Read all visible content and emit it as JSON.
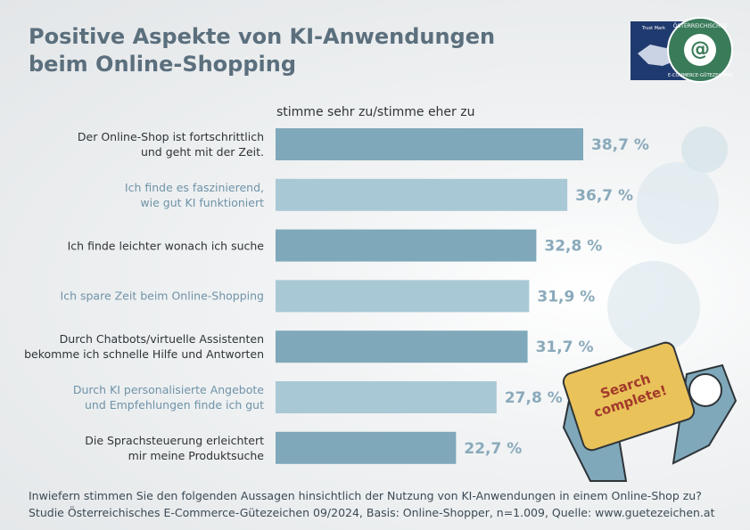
{
  "chart_data": {
    "type": "hbar",
    "title": "Positive Aspekte von KI-Anwendungen\nbeim Online-Shopping",
    "subtitle": "stimme sehr zu/stimme eher zu",
    "categories": [
      "Der Online-Shop ist fortschrittlich\nund geht mit der Zeit.",
      "Ich finde es faszinierend,\nwie gut KI funktioniert",
      "Ich finde leichter wonach ich suche",
      "Ich spare Zeit beim Online-Shopping",
      "Durch Chatbots/virtuelle Assistenten\nbekomme ich schnelle Hilfe und Antworten",
      "Durch KI personalisierte Angebote\nund Empfehlungen finde ich gut",
      "Die Sprachsteuerung erleichtert\nmir meine Produktsuche"
    ],
    "values": [
      38.7,
      36.7,
      32.8,
      31.9,
      31.7,
      27.8,
      22.7
    ],
    "value_labels": [
      "38,7 %",
      "36,7 %",
      "32,8 %",
      "31,9 %",
      "31,7 %",
      "27,8 %",
      "22,7 %"
    ],
    "colors": [
      "#7fa8ba",
      "#a9c8d6",
      "#7fa8ba",
      "#a9c8d6",
      "#7fa8ba",
      "#a9c8d6",
      "#7fa8ba"
    ],
    "label_colors": [
      "#2e3438",
      "#6f93a8",
      "#2e3438",
      "#6f93a8",
      "#2e3438",
      "#6f93a8",
      "#2e3438"
    ],
    "notes": [
      "Inwiefern stimmen Sie den folgenden Aussagen hinsichtlich der Nutzung von KI-Anwendungen in einem Online-Shop zu?",
      "Studie Österreichisches E-Commerce-Gütezeichen 09/2024, Basis: Online-Shopper, n=1.009, Quelle: www.guetezeichen.at"
    ],
    "logo": {
      "trust": "Trust Mark",
      "top": "ÖSTERREICHISCHES",
      "bottom": "E-COMMERCE-GÜTEZEICHEN"
    },
    "badge": "Search\ncomplete!"
  }
}
